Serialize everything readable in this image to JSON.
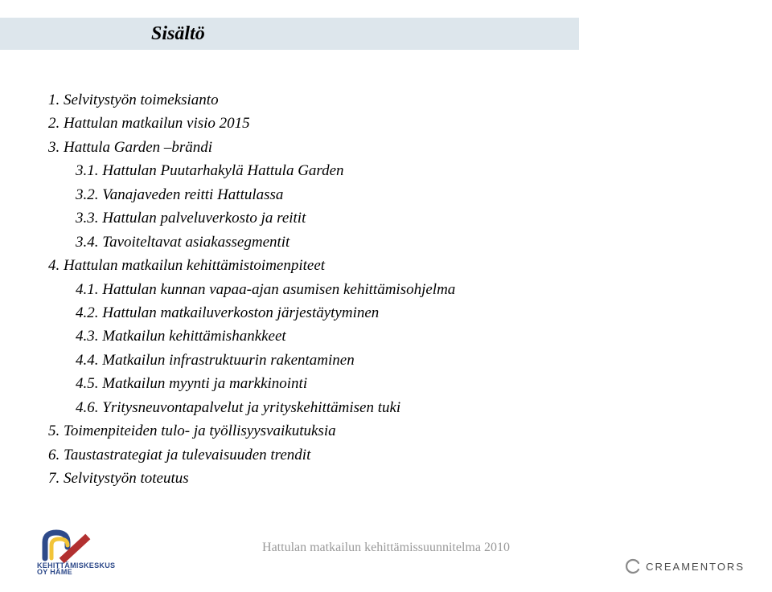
{
  "title": "Sisältö",
  "toc": {
    "items": [
      {
        "text": "1. Selvitystyön toimeksianto",
        "indent": false
      },
      {
        "text": "2. Hattulan matkailun visio 2015",
        "indent": false
      },
      {
        "text": "3. Hattula Garden –brändi",
        "indent": false
      },
      {
        "text": "3.1. Hattulan Puutarhakylä Hattula Garden",
        "indent": true
      },
      {
        "text": "3.2. Vanajaveden reitti Hattulassa",
        "indent": true
      },
      {
        "text": "3.3. Hattulan palveluverkosto ja reitit",
        "indent": true
      },
      {
        "text": "3.4. Tavoiteltavat asiakassegmentit",
        "indent": true
      },
      {
        "text": "4. Hattulan matkailun kehittämistoimenpiteet",
        "indent": false
      },
      {
        "text": "4.1. Hattulan kunnan vapaa-ajan asumisen kehittämisohjelma",
        "indent": true
      },
      {
        "text": "4.2. Hattulan matkailuverkoston järjestäytyminen",
        "indent": true
      },
      {
        "text": "4.3. Matkailun kehittämishankkeet",
        "indent": true
      },
      {
        "text": "4.4. Matkailun infrastruktuurin rakentaminen",
        "indent": true
      },
      {
        "text": "4.5. Matkailun myynti ja markkinointi",
        "indent": true
      },
      {
        "text": "4.6. Yritysneuvontapalvelut ja yrityskehittämisen tuki",
        "indent": true
      },
      {
        "text": "5. Toimenpiteiden tulo- ja työllisyysvaikutuksia",
        "indent": false
      },
      {
        "text": "6. Taustastrategiat ja tulevaisuuden trendit",
        "indent": false
      },
      {
        "text": "7. Selvitystyön toteutus",
        "indent": false
      }
    ]
  },
  "footer": "Hattulan matkailun kehittämissuunnitelma 2010",
  "logo_left": {
    "line1": "KEHITTÄMISKESKUS",
    "line2": "OY HÄME",
    "colors": {
      "blue": "#2e4a8a",
      "yellow": "#f2c438",
      "red": "#b23030"
    }
  },
  "logo_right": {
    "text": "CREAMENTORS",
    "icon_color": "#8a8a8a"
  },
  "colors": {
    "title_bg": "#dde6ec",
    "text": "#000000",
    "footer_text": "#9a9a9a",
    "background": "#ffffff"
  }
}
